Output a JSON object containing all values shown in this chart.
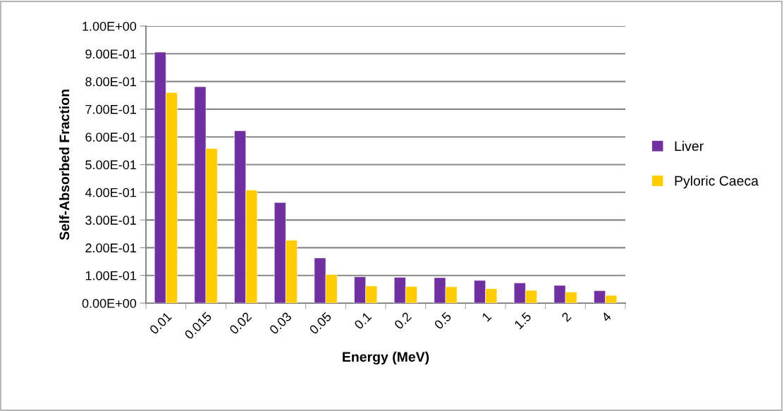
{
  "chart_data": {
    "type": "bar",
    "xlabel": "Energy (MeV)",
    "ylabel": "Self-Absorbed Fraction",
    "categories": [
      "0.01",
      "0.015",
      "0.02",
      "0.03",
      "0.05",
      "0.1",
      "0.2",
      "0.5",
      "1",
      "1.5",
      "2",
      "4"
    ],
    "series": [
      {
        "name": "Liver",
        "color": "#7030a0",
        "values": [
          0.906,
          0.781,
          0.622,
          0.363,
          0.163,
          0.095,
          0.093,
          0.092,
          0.082,
          0.073,
          0.064,
          0.045
        ]
      },
      {
        "name": "Pyloric Caeca",
        "color": "#ffcc00",
        "values": [
          0.76,
          0.558,
          0.408,
          0.227,
          0.103,
          0.062,
          0.06,
          0.059,
          0.052,
          0.046,
          0.04,
          0.028
        ]
      }
    ],
    "ylim": [
      0,
      1
    ],
    "yticks": [
      {
        "value": 0,
        "label": "0.00E+00"
      },
      {
        "value": 0.1,
        "label": "1.00E-01"
      },
      {
        "value": 0.2,
        "label": "2.00E-01"
      },
      {
        "value": 0.3,
        "label": "3.00E-01"
      },
      {
        "value": 0.4,
        "label": "4.00E-01"
      },
      {
        "value": 0.5,
        "label": "5.00E-01"
      },
      {
        "value": 0.6,
        "label": "6.00E-01"
      },
      {
        "value": 0.7,
        "label": "7.00E-01"
      },
      {
        "value": 0.8,
        "label": "8.00E-01"
      },
      {
        "value": 0.9,
        "label": "9.00E-01"
      },
      {
        "value": 1,
        "label": "1.00E+00"
      }
    ],
    "grid": "y",
    "legend": "right"
  }
}
